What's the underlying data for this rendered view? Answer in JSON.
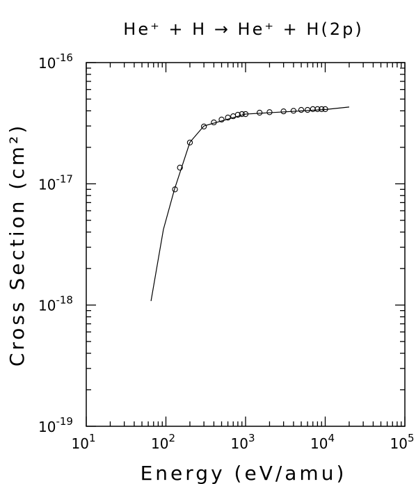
{
  "chart_data": {
    "type": "scatter",
    "title": "He⁺ + H → He⁺ + H(2p)",
    "xlabel": "Energy (eV/amu)",
    "ylabel": "Cross Section (cm²)",
    "xscale": "log",
    "yscale": "log",
    "xlim": [
      10,
      100000
    ],
    "ylim": [
      1e-19,
      1e-16
    ],
    "xticks": [
      {
        "value": 10,
        "label": "10",
        "power": "1"
      },
      {
        "value": 100,
        "label": "10",
        "power": "2"
      },
      {
        "value": 1000,
        "label": "10",
        "power": "3"
      },
      {
        "value": 10000,
        "label": "10",
        "power": "4"
      },
      {
        "value": 100000,
        "label": "10",
        "power": "5"
      }
    ],
    "yticks": [
      {
        "value": 1e-19,
        "label": "10",
        "power": "-19"
      },
      {
        "value": 1e-18,
        "label": "10",
        "power": "-18"
      },
      {
        "value": 1e-17,
        "label": "10",
        "power": "-17"
      },
      {
        "value": 1e-16,
        "label": "10",
        "power": "-16"
      }
    ],
    "series": [
      {
        "type": "line",
        "color": "#000000",
        "x": [
          65,
          93,
          128,
          200,
          300,
          1000,
          10000,
          20000
        ],
        "values": [
          1.08e-18,
          4.2e-18,
          9e-18,
          2.2e-17,
          3e-17,
          3.76e-17,
          4.1e-17,
          4.3e-17
        ]
      },
      {
        "type": "scatter",
        "color": "#000000",
        "x": [
          130,
          150,
          200,
          300,
          400,
          500,
          600,
          700,
          800,
          900,
          1000,
          1500,
          2000,
          3000,
          4000,
          5000,
          6000,
          7000,
          8000,
          9000,
          10000
        ],
        "values": [
          9e-18,
          1.36e-17,
          2.19e-17,
          2.97e-17,
          3.21e-17,
          3.39e-17,
          3.52e-17,
          3.61e-17,
          3.71e-17,
          3.76e-17,
          3.76e-17,
          3.86e-17,
          3.9e-17,
          3.96e-17,
          4e-17,
          4.07e-17,
          4.07e-17,
          4.13e-17,
          4.13e-17,
          4.13e-17,
          4.13e-17
        ]
      }
    ]
  }
}
